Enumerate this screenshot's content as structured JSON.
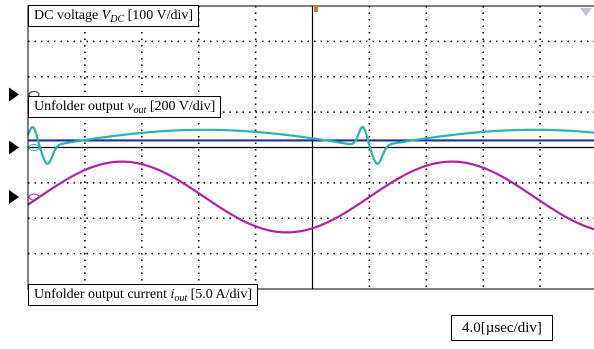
{
  "chart_data": {
    "type": "line",
    "instrument": "oscilloscope",
    "timebase": "4.0[µsec/div]",
    "divisions": {
      "x": 10,
      "y": 8
    },
    "grid": true,
    "channels": [
      {
        "name_pre": "DC voltage ",
        "symbol": "V",
        "subscript": "DC",
        "scale": "[100 V/div]",
        "color": "#1f2f9a",
        "ground_level_div": 5.5,
        "waveform": "dc",
        "level_div": 4.2
      },
      {
        "name_pre": "Unfolder output ",
        "symbol": "v",
        "subscript": "out",
        "scale": "[200 V/div]",
        "color": "#2bb3b0",
        "ground_level_div": 4.0,
        "waveform": "rectified_sine_with_spikes",
        "amplitude_div": 0.5,
        "half_period_div": 5.8,
        "phase_div": 0.2,
        "spike_div": 0.5
      },
      {
        "name_pre": "Unfolder output current ",
        "symbol": "i",
        "subscript": "out",
        "scale": "[5.0 A/div]",
        "color": "#b0239f",
        "ground_level_div": 2.6,
        "waveform": "sine",
        "amplitude_div": 1.0,
        "period_div": 5.8,
        "phase_div": 0.2
      }
    ]
  }
}
